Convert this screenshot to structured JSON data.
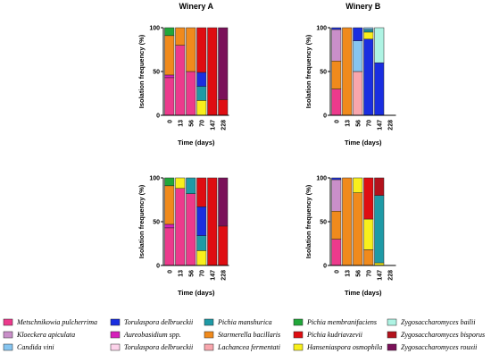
{
  "chart_data": [
    {
      "type": "bar",
      "stacked": true,
      "title": "Winery A",
      "xlabel": "Time (days)",
      "ylabel": "Isolation frequency (%)",
      "ylim": [
        0,
        100
      ],
      "yticks": [
        "0",
        "50",
        "100"
      ],
      "categories": [
        "0",
        "13",
        "56",
        "70",
        "147",
        "228"
      ],
      "series": [
        {
          "name": "Metschnikowia pulcherrima",
          "values": [
            43,
            80,
            50,
            0,
            0,
            0
          ]
        },
        {
          "name": "Aureobasidium spp.",
          "values": [
            3,
            0,
            0,
            0,
            0,
            0
          ]
        },
        {
          "name": "Starmerella bacillaris",
          "values": [
            45,
            20,
            50,
            0,
            0,
            0
          ]
        },
        {
          "name": "Hanseniaspora osmophila",
          "values": [
            0,
            0,
            0,
            17,
            0,
            0
          ]
        },
        {
          "name": "Pichia manshurica",
          "values": [
            0,
            0,
            0,
            16,
            0,
            0
          ]
        },
        {
          "name": "Torulaspora delbrueckii",
          "values": [
            0,
            0,
            0,
            16,
            0,
            0
          ]
        },
        {
          "name": "Pichia kudriavzevii",
          "values": [
            0,
            0,
            0,
            51,
            100,
            18
          ]
        },
        {
          "name": "Zygosaccharomyces rouxii",
          "values": [
            0,
            0,
            0,
            0,
            0,
            82
          ]
        },
        {
          "name": "Pichia membranifaciens",
          "values": [
            9,
            0,
            0,
            0,
            0,
            0
          ]
        }
      ]
    },
    {
      "type": "bar",
      "stacked": true,
      "title": "Winery B",
      "xlabel": "Time (days)",
      "ylabel": "Isolation frequency (%)",
      "ylim": [
        0,
        100
      ],
      "yticks": [
        "0",
        "50",
        "100"
      ],
      "categories": [
        "0",
        "13",
        "56",
        "70",
        "147",
        "228"
      ],
      "series": [
        {
          "name": "Metschnikowia pulcherrima",
          "values": [
            30,
            0,
            0,
            0,
            0,
            0
          ]
        },
        {
          "name": "Starmerella bacillaris",
          "values": [
            32,
            100,
            0,
            0,
            0,
            0
          ]
        },
        {
          "name": "Kloeckera apiculata",
          "values": [
            36,
            0,
            0,
            0,
            0,
            0
          ]
        },
        {
          "name": "Lachancea fermentati",
          "values": [
            0,
            0,
            50,
            0,
            0,
            0
          ]
        },
        {
          "name": "Candida vini",
          "values": [
            0,
            0,
            35,
            0,
            0,
            0
          ]
        },
        {
          "name": "Torulaspora delbrueckii",
          "values": [
            2,
            0,
            15,
            87,
            60,
            0
          ]
        },
        {
          "name": "Hanseniaspora osmophila",
          "values": [
            0,
            0,
            0,
            8,
            0,
            0
          ]
        },
        {
          "name": "Pichia manshurica",
          "values": [
            0,
            0,
            0,
            3,
            0,
            0
          ]
        },
        {
          "name": "Candida vini",
          "values": [
            0,
            0,
            0,
            2,
            0,
            0
          ]
        },
        {
          "name": "Zygosaccharomyces bailii",
          "values": [
            0,
            0,
            0,
            0,
            40,
            0
          ]
        }
      ]
    },
    {
      "type": "bar",
      "stacked": true,
      "title": "",
      "xlabel": "Time (days)",
      "ylabel": "Isolation frequency (%)",
      "ylim": [
        0,
        100
      ],
      "yticks": [
        "0",
        "50",
        "100"
      ],
      "categories": [
        "0",
        "13",
        "56",
        "70",
        "147",
        "228"
      ],
      "series": [
        {
          "name": "Metschnikowia pulcherrima",
          "values": [
            43,
            88,
            82,
            0,
            0,
            0
          ]
        },
        {
          "name": "Aureobasidium spp.",
          "values": [
            4,
            0,
            0,
            0,
            0,
            0
          ]
        },
        {
          "name": "Starmerella bacillaris",
          "values": [
            44,
            0,
            0,
            0,
            0,
            0
          ]
        },
        {
          "name": "Hanseniaspora osmophila",
          "values": [
            0,
            12,
            0,
            17,
            0,
            0
          ]
        },
        {
          "name": "Pichia manshurica",
          "values": [
            0,
            0,
            18,
            17,
            0,
            0
          ]
        },
        {
          "name": "Torulaspora delbrueckii",
          "values": [
            0,
            0,
            0,
            33,
            0,
            0
          ]
        },
        {
          "name": "Pichia kudriavzevii",
          "values": [
            0,
            0,
            0,
            33,
            100,
            45
          ]
        },
        {
          "name": "Zygosaccharomyces rouxii",
          "values": [
            0,
            0,
            0,
            0,
            0,
            55
          ]
        },
        {
          "name": "Pichia membranifaciens",
          "values": [
            9,
            0,
            0,
            0,
            0,
            0
          ]
        }
      ]
    },
    {
      "type": "bar",
      "stacked": true,
      "title": "",
      "xlabel": "Time (days)",
      "ylabel": "Isolation frequency (%)",
      "ylim": [
        0,
        100
      ],
      "yticks": [
        "0",
        "50",
        "100"
      ],
      "categories": [
        "0",
        "13",
        "56",
        "70",
        "147",
        "228"
      ],
      "series": [
        {
          "name": "Metschnikowia pulcherrima",
          "values": [
            30,
            0,
            0,
            0,
            0,
            0
          ]
        },
        {
          "name": "Starmerella bacillaris",
          "values": [
            32,
            100,
            83,
            18,
            0,
            0
          ]
        },
        {
          "name": "Kloeckera apiculata",
          "values": [
            36,
            0,
            0,
            0,
            0,
            0
          ]
        },
        {
          "name": "Torulaspora delbrueckii",
          "values": [
            2,
            0,
            0,
            0,
            0,
            0
          ]
        },
        {
          "name": "Hanseniaspora osmophila",
          "values": [
            0,
            0,
            17,
            35,
            3,
            0
          ]
        },
        {
          "name": "Pichia kudriavzevii",
          "values": [
            0,
            0,
            0,
            47,
            0,
            0
          ]
        },
        {
          "name": "Pichia manshurica",
          "values": [
            0,
            0,
            0,
            0,
            77,
            0
          ]
        },
        {
          "name": "Zygosaccharomyces bisporus",
          "values": [
            0,
            0,
            0,
            0,
            20,
            0
          ]
        }
      ]
    }
  ],
  "legend": [
    {
      "name": "Metschnikowia pulcherrima",
      "color": "#ec3a8c"
    },
    {
      "name": "Torulaspora delbrueckii",
      "color": "#1a2ee0"
    },
    {
      "name": "Pichia manshurica",
      "color": "#1f9aa6"
    },
    {
      "name": "Pichia membranifaciens",
      "color": "#21a73a"
    },
    {
      "name": "Zygosaccharomyces bailii",
      "color": "#aef3e3"
    },
    {
      "name": "Kloeckera apiculata",
      "color": "#c98fc9"
    },
    {
      "name": "Aureobasidium spp.",
      "color": "#d61fba"
    },
    {
      "name": "Starmerella bacillaris",
      "color": "#f08a1c"
    },
    {
      "name": "Pichia kudriavzevii",
      "color": "#df0d12"
    },
    {
      "name": "Zygosaccharomyces bisporus",
      "color": "#b3121c"
    },
    {
      "name": "Candida vini",
      "color": "#86c5f0"
    },
    {
      "name": "Torulaspora delbrueckii",
      "color": "#fcd3ea"
    },
    {
      "name": "Lachancea fermentati",
      "color": "#f8a6ad"
    },
    {
      "name": "Hanseniaspora osmophila",
      "color": "#f8ef1c"
    },
    {
      "name": "Zygosaccharomyces rouxii",
      "color": "#7a1159"
    }
  ],
  "series_colors": {
    "Metschnikowia pulcherrima": "#ec3a8c",
    "Kloeckera apiculata": "#c98fc9",
    "Candida vini": "#86c5f0",
    "Torulaspora delbrueckii": "#1a2ee0",
    "Aureobasidium spp.": "#d61fba",
    "Pichia manshurica": "#1f9aa6",
    "Starmerella bacillaris": "#f08a1c",
    "Lachancea fermentati": "#f8a6ad",
    "Pichia membranifaciens": "#21a73a",
    "Pichia kudriavzevii": "#df0d12",
    "Hanseniaspora osmophila": "#f8ef1c",
    "Zygosaccharomyces bailii": "#aef3e3",
    "Zygosaccharomyces bisporus": "#b3121c",
    "Zygosaccharomyces rouxii": "#7a1159"
  }
}
